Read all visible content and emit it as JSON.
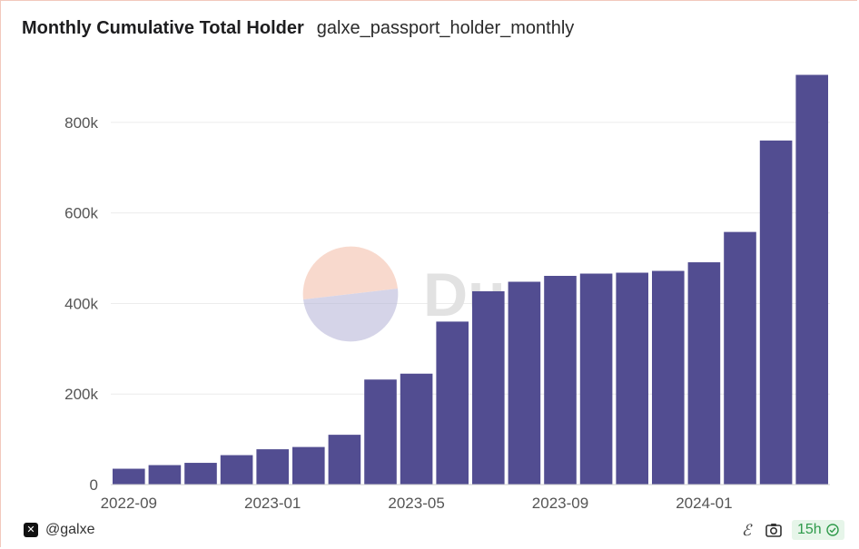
{
  "header": {
    "title": "Monthly Cumulative Total Holder",
    "subtitle": "galxe_passport_holder_monthly"
  },
  "watermark": {
    "text": "Dune"
  },
  "footer": {
    "account": "@galxe",
    "refresh_label": "15h",
    "icons": [
      "galxe-logo-icon",
      "formula-icon",
      "camera-icon",
      "check-circle-icon"
    ]
  },
  "colors": {
    "bar": "#524d91",
    "grid": "#ececec",
    "axis_text": "#555555",
    "badge_green": "#2e9a4a"
  },
  "chart_data": {
    "type": "bar",
    "categories": [
      "2022-09",
      "2022-10",
      "2022-11",
      "2022-12",
      "2023-01",
      "2023-02",
      "2023-03",
      "2023-04",
      "2023-05",
      "2023-06",
      "2023-07",
      "2023-08",
      "2023-09",
      "2023-10",
      "2023-11",
      "2023-12",
      "2024-01",
      "2024-02",
      "2024-03",
      "2024-04"
    ],
    "values": [
      35000,
      43000,
      48000,
      65000,
      78000,
      83000,
      110000,
      232000,
      245000,
      360000,
      427000,
      448000,
      461000,
      466000,
      468000,
      472000,
      491000,
      558000,
      760000,
      905000
    ],
    "x_tick_labels": [
      "2022-09",
      "2023-01",
      "2023-05",
      "2023-09",
      "2024-01"
    ],
    "y_tick_labels": [
      "0",
      "200k",
      "400k",
      "600k",
      "800k"
    ],
    "y_ticks": [
      0,
      200000,
      400000,
      600000,
      800000
    ],
    "ylim": [
      0,
      910000
    ],
    "grid": true,
    "legend": "none"
  }
}
